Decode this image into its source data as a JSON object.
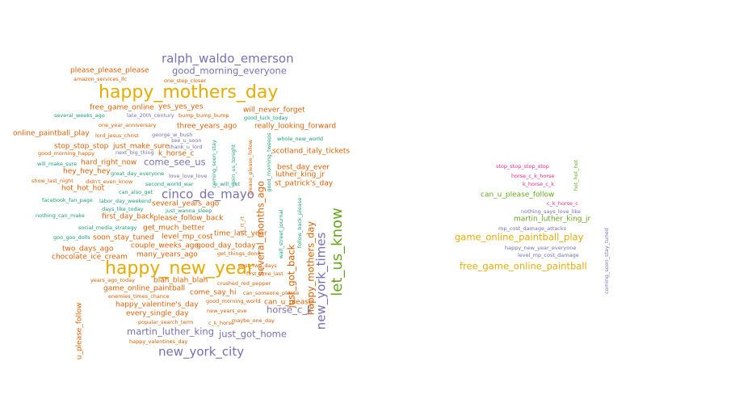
{
  "chart_data": {
    "type": "wordcloud",
    "colors": {
      "orange": "#d95f02",
      "purple": "#7570b3",
      "magenta": "#e7298a",
      "green": "#66a61e",
      "gold": "#e6ab02",
      "brown": "#a6761d",
      "teal": "#1b9e77"
    },
    "clouds": [
      {
        "words": [
          {
            "text": "happy_mothers_day",
            "color": "gold",
            "size": 5,
            "vertical": false
          },
          {
            "text": "happy_new_year",
            "color": "gold",
            "size": 5,
            "vertical": false
          },
          {
            "text": "let_us_know",
            "color": "green",
            "size": 4,
            "vertical": true
          },
          {
            "text": "ralph_waldo_emerson",
            "color": "purple",
            "size": 3,
            "vertical": false
          },
          {
            "text": "cinco_de_mayo",
            "color": "purple",
            "size": 3,
            "vertical": false
          },
          {
            "text": "new_york_city",
            "color": "purple",
            "size": 3,
            "vertical": false
          },
          {
            "text": "new_york_times",
            "color": "purple",
            "size": 3,
            "vertical": true
          },
          {
            "text": "good_morning_everyone",
            "color": "purple",
            "size": 2,
            "vertical": false
          },
          {
            "text": "come_see_us",
            "color": "purple",
            "size": 2,
            "vertical": false
          },
          {
            "text": "martin_luther_king",
            "color": "purple",
            "size": 2,
            "vertical": false
          },
          {
            "text": "just_got_home",
            "color": "purple",
            "size": 2,
            "vertical": false
          },
          {
            "text": "horse_c_k",
            "color": "purple",
            "size": 2,
            "vertical": false
          },
          {
            "text": "happy_mothers_day",
            "color": "orange",
            "size": 2,
            "vertical": true
          },
          {
            "text": "several_months_ago",
            "color": "orange",
            "size": 2,
            "vertical": true
          },
          {
            "text": "just_got_back",
            "color": "orange",
            "size": 2,
            "vertical": true
          },
          {
            "text": "please_please_please",
            "color": "orange",
            "size": 1,
            "vertical": false
          },
          {
            "text": "amazon_services_llc",
            "color": "orange",
            "size": 0,
            "vertical": false
          },
          {
            "text": "one_step_closer",
            "color": "orange",
            "size": 0,
            "vertical": false
          },
          {
            "text": "free_game_online",
            "color": "orange",
            "size": 1,
            "vertical": false
          },
          {
            "text": "yes_yes_yes",
            "color": "orange",
            "size": 1,
            "vertical": false
          },
          {
            "text": "will_never_forget",
            "color": "orange",
            "size": 1,
            "vertical": false
          },
          {
            "text": "several_weeks_ago",
            "color": "teal",
            "size": 0,
            "vertical": false
          },
          {
            "text": "late_20th_century",
            "color": "purple",
            "size": 0,
            "vertical": false
          },
          {
            "text": "bump_bump_bump",
            "color": "orange",
            "size": 0,
            "vertical": false
          },
          {
            "text": "good_luck_today",
            "color": "teal",
            "size": 0,
            "vertical": false
          },
          {
            "text": "one_year_anniversary",
            "color": "orange",
            "size": 0,
            "vertical": false
          },
          {
            "text": "three_years_ago",
            "color": "orange",
            "size": 1,
            "vertical": false
          },
          {
            "text": "really_looking_forward",
            "color": "orange",
            "size": 1,
            "vertical": false
          },
          {
            "text": "online_paintball_play",
            "color": "orange",
            "size": 1,
            "vertical": false
          },
          {
            "text": "lord_jesus_christ",
            "color": "orange",
            "size": 0,
            "vertical": false
          },
          {
            "text": "george_w_bush",
            "color": "purple",
            "size": 0,
            "vertical": false
          },
          {
            "text": "see_u_soon",
            "color": "purple",
            "size": 0,
            "vertical": false
          },
          {
            "text": "thank_u_lord",
            "color": "purple",
            "size": 0,
            "vertical": false
          },
          {
            "text": "whole_new_world",
            "color": "teal",
            "size": 0,
            "vertical": false
          },
          {
            "text": "stop_stop_stop",
            "color": "orange",
            "size": 1,
            "vertical": false
          },
          {
            "text": "just_make_sure",
            "color": "orange",
            "size": 1,
            "vertical": false
          },
          {
            "text": "k_horse_c",
            "color": "orange",
            "size": 1,
            "vertical": false
          },
          {
            "text": "scotland_italy_tickets",
            "color": "orange",
            "size": 1,
            "vertical": false
          },
          {
            "text": "good_morning_happy",
            "color": "orange",
            "size": 0,
            "vertical": false
          },
          {
            "text": "next_big_thing",
            "color": "purple",
            "size": 0,
            "vertical": false
          },
          {
            "text": "will_make_sure",
            "color": "teal",
            "size": 0,
            "vertical": false
          },
          {
            "text": "hard_right_now",
            "color": "orange",
            "size": 1,
            "vertical": false
          },
          {
            "text": "best_day_ever",
            "color": "orange",
            "size": 1,
            "vertical": false
          },
          {
            "text": "hey_hey_hey",
            "color": "orange",
            "size": 1,
            "vertical": false
          },
          {
            "text": "great_day_everyone",
            "color": "teal",
            "size": 0,
            "vertical": false
          },
          {
            "text": "love_love_love",
            "color": "purple",
            "size": 0,
            "vertical": false
          },
          {
            "text": "luther_king_jr",
            "color": "orange",
            "size": 1,
            "vertical": false
          },
          {
            "text": "show_last_night",
            "color": "orange",
            "size": 0,
            "vertical": false
          },
          {
            "text": "didn't_even_know",
            "color": "orange",
            "size": 0,
            "vertical": false
          },
          {
            "text": "second_world_war",
            "color": "teal",
            "size": 0,
            "vertical": false
          },
          {
            "text": "u_will_get",
            "color": "teal",
            "size": 0,
            "vertical": false
          },
          {
            "text": "st_patrick's_day",
            "color": "orange",
            "size": 1,
            "vertical": false
          },
          {
            "text": "hot_hot_hot",
            "color": "orange",
            "size": 1,
            "vertical": false
          },
          {
            "text": "can_also_get",
            "color": "teal",
            "size": 0,
            "vertical": false
          },
          {
            "text": "facebook_fan_page",
            "color": "teal",
            "size": 0,
            "vertical": false
          },
          {
            "text": "labor_day_weekend",
            "color": "teal",
            "size": 0,
            "vertical": false
          },
          {
            "text": "several_years_ago",
            "color": "orange",
            "size": 1,
            "vertical": false
          },
          {
            "text": "days_like_today",
            "color": "teal",
            "size": 0,
            "vertical": false
          },
          {
            "text": "just_wanna_sleep",
            "color": "teal",
            "size": 0,
            "vertical": false
          },
          {
            "text": "nothing_can_make",
            "color": "teal",
            "size": 0,
            "vertical": false
          },
          {
            "text": "first_day_back",
            "color": "orange",
            "size": 1,
            "vertical": false
          },
          {
            "text": "please_follow_back",
            "color": "orange",
            "size": 1,
            "vertical": false
          },
          {
            "text": "social_media_strategy",
            "color": "teal",
            "size": 0,
            "vertical": false
          },
          {
            "text": "get_much_better",
            "color": "orange",
            "size": 1,
            "vertical": false
          },
          {
            "text": "goo_goo_dolls",
            "color": "teal",
            "size": 0,
            "vertical": false
          },
          {
            "text": "soon_stay_tuned",
            "color": "orange",
            "size": 1,
            "vertical": false
          },
          {
            "text": "level_mp_cost",
            "color": "orange",
            "size": 1,
            "vertical": false
          },
          {
            "text": "time_last_year",
            "color": "orange",
            "size": 1,
            "vertical": false
          },
          {
            "text": "couple_weeks_ago",
            "color": "orange",
            "size": 1,
            "vertical": false
          },
          {
            "text": "good_day_today",
            "color": "orange",
            "size": 1,
            "vertical": false
          },
          {
            "text": "two_days_ago",
            "color": "orange",
            "size": 1,
            "vertical": false
          },
          {
            "text": "many_years_ago",
            "color": "orange",
            "size": 1,
            "vertical": false
          },
          {
            "text": "get_things_done",
            "color": "orange",
            "size": 0,
            "vertical": false
          },
          {
            "text": "chocolate_ice_cream",
            "color": "orange",
            "size": 1,
            "vertical": false
          },
          {
            "text": "past_two_days",
            "color": "orange",
            "size": 0,
            "vertical": false
          },
          {
            "text": "first_time_last",
            "color": "orange",
            "size": 0,
            "vertical": false
          },
          {
            "text": "years_ago_today",
            "color": "orange",
            "size": 0,
            "vertical": false
          },
          {
            "text": "blah_blah_blah",
            "color": "orange",
            "size": 1,
            "vertical": false
          },
          {
            "text": "crushed_red_pepper",
            "color": "orange",
            "size": 0,
            "vertical": false
          },
          {
            "text": "game_online_paintball",
            "color": "orange",
            "size": 1,
            "vertical": false
          },
          {
            "text": "come_say_hi",
            "color": "orange",
            "size": 1,
            "vertical": false
          },
          {
            "text": "can_someone_please",
            "color": "orange",
            "size": 0,
            "vertical": false
          },
          {
            "text": "enemies_times_chance",
            "color": "orange",
            "size": 0,
            "vertical": false
          },
          {
            "text": "good_morning_world",
            "color": "orange",
            "size": 0,
            "vertical": false
          },
          {
            "text": "can_u_please",
            "color": "orange",
            "size": 1,
            "vertical": false
          },
          {
            "text": "happy_valentine's_day",
            "color": "orange",
            "size": 1,
            "vertical": false
          },
          {
            "text": "new_years_eve",
            "color": "orange",
            "size": 0,
            "vertical": false
          },
          {
            "text": "every_single_day",
            "color": "orange",
            "size": 1,
            "vertical": false
          },
          {
            "text": "popular_search_term",
            "color": "orange",
            "size": 0,
            "vertical": false
          },
          {
            "text": "c_k_horse",
            "color": "orange",
            "size": 0,
            "vertical": false
          },
          {
            "text": "maybe_one_day",
            "color": "orange",
            "size": 0,
            "vertical": false
          },
          {
            "text": "happy_valentines_day",
            "color": "orange",
            "size": 0,
            "vertical": false
          },
          {
            "text": "u_please_follow",
            "color": "orange",
            "size": 1,
            "vertical": true
          },
          {
            "text": "coming_soon_stay",
            "color": "teal",
            "size": 0,
            "vertical": true
          },
          {
            "text": "join_us_tonight",
            "color": "teal",
            "size": 0,
            "vertical": true
          },
          {
            "text": "please_please_follow",
            "color": "orange",
            "size": 0,
            "vertical": true
          },
          {
            "text": "good_morning_tweeps",
            "color": "teal",
            "size": 0,
            "vertical": true
          },
          {
            "text": "rt_rt_rt",
            "color": "orange",
            "size": 0,
            "vertical": true
          },
          {
            "text": "wall_street_journal",
            "color": "teal",
            "size": 0,
            "vertical": true
          },
          {
            "text": "follow_back_please",
            "color": "teal",
            "size": 0,
            "vertical": true
          }
        ]
      },
      {
        "words": [
          {
            "text": "stop_stop_stop_stop",
            "color": "magenta",
            "size": 0,
            "vertical": false
          },
          {
            "text": "horse_c_k_horse",
            "color": "magenta",
            "size": 0,
            "vertical": false
          },
          {
            "text": "k_horse_c_k",
            "color": "magenta",
            "size": 0,
            "vertical": false
          },
          {
            "text": "hot_hot_hot",
            "color": "green",
            "size": 0,
            "vertical": true
          },
          {
            "text": "can_u_please_follow",
            "color": "green",
            "size": 1,
            "vertical": false
          },
          {
            "text": "c_k_horse_c",
            "color": "magenta",
            "size": 0,
            "vertical": false
          },
          {
            "text": "nothing_says_love_like",
            "color": "purple",
            "size": 0,
            "vertical": false
          },
          {
            "text": "martin_luther_king_jr",
            "color": "green",
            "size": 1,
            "vertical": false
          },
          {
            "text": "mp_cost_damage_attacks",
            "color": "purple",
            "size": 0,
            "vertical": false
          },
          {
            "text": "game_online_paintball_play",
            "color": "gold",
            "size": 2,
            "vertical": false
          },
          {
            "text": "happy_new_year_everyone",
            "color": "purple",
            "size": 0,
            "vertical": false
          },
          {
            "text": "level_mp_cost_damage",
            "color": "purple",
            "size": 0,
            "vertical": false
          },
          {
            "text": "free_game_online_paintball",
            "color": "gold",
            "size": 2,
            "vertical": false
          },
          {
            "text": "coming_soon_stay_tuned",
            "color": "purple",
            "size": 0,
            "vertical": true
          }
        ]
      }
    ]
  }
}
